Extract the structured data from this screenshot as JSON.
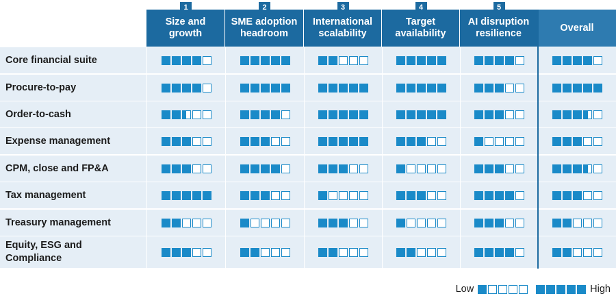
{
  "columns": [
    {
      "num": "1",
      "lines": [
        "Size and",
        "growth"
      ]
    },
    {
      "num": "2",
      "lines": [
        "SME adoption",
        "headroom"
      ]
    },
    {
      "num": "3",
      "lines": [
        "International",
        "scalability"
      ]
    },
    {
      "num": "4",
      "lines": [
        "Target",
        "availability"
      ]
    },
    {
      "num": "5",
      "lines": [
        "AI disruption",
        "resilience"
      ]
    },
    {
      "num": "",
      "lines": [
        "Overall"
      ]
    }
  ],
  "rows": [
    {
      "label": [
        "Core financial suite"
      ],
      "scores": [
        4,
        5,
        2,
        5,
        4,
        4
      ]
    },
    {
      "label": [
        "Procure-to-pay"
      ],
      "scores": [
        4,
        5,
        5,
        5,
        3,
        5
      ]
    },
    {
      "label": [
        "Order-to-cash"
      ],
      "scores": [
        2.5,
        4,
        5,
        5,
        3,
        3.5
      ]
    },
    {
      "label": [
        "Expense management"
      ],
      "scores": [
        3,
        3,
        5,
        3,
        1,
        3
      ]
    },
    {
      "label": [
        "CPM, close and FP&A"
      ],
      "scores": [
        3,
        4,
        3,
        1,
        3,
        3.5
      ]
    },
    {
      "label": [
        "Tax management"
      ],
      "scores": [
        5,
        3,
        1,
        3,
        4,
        3
      ]
    },
    {
      "label": [
        "Treasury management"
      ],
      "scores": [
        2,
        1,
        3,
        1,
        3,
        2
      ]
    },
    {
      "label": [
        "Equity, ESG and",
        "Compliance"
      ],
      "scores": [
        3,
        2,
        2,
        2,
        4,
        2
      ]
    }
  ],
  "legend": {
    "low_label": "Low",
    "high_label": "High",
    "low_score": 1,
    "high_score": 5
  },
  "colors": {
    "header": "#1c6aa0",
    "header_overall": "#2e7bb0",
    "cell_bg": "#e5eef6",
    "square": "#1a8ac8"
  }
}
